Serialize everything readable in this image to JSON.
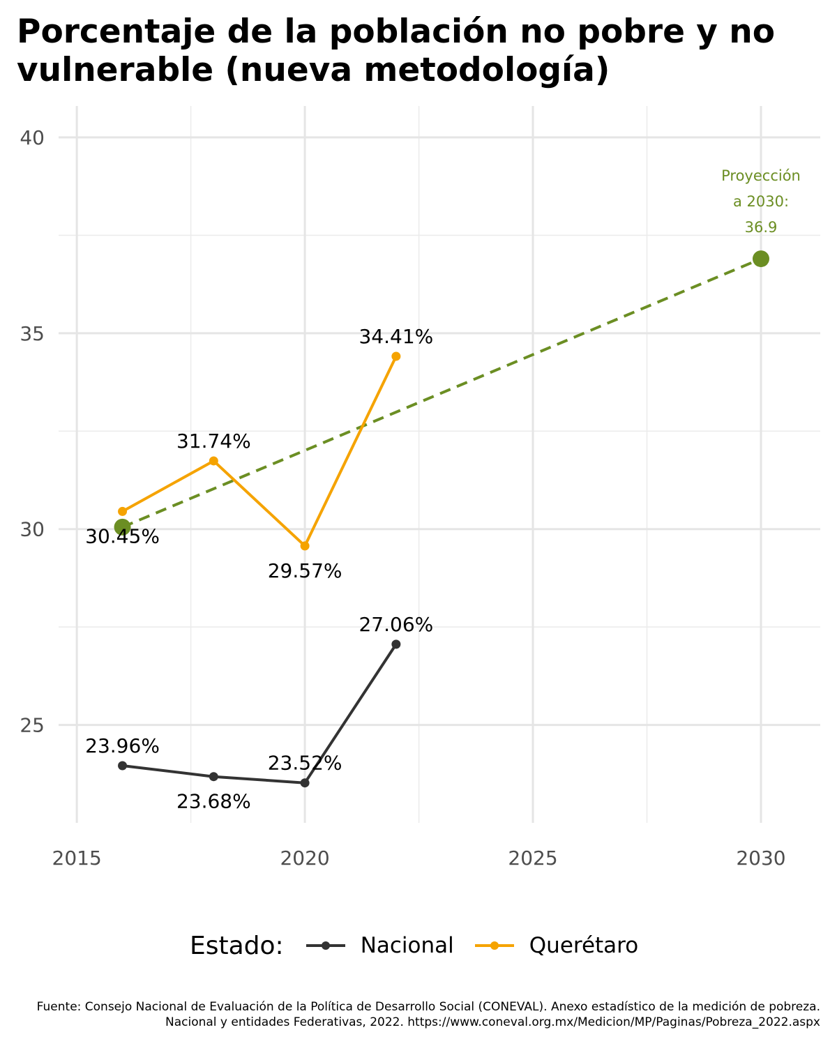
{
  "title": "Porcentaje de la población no pobre y no vulnerable (nueva metodología)",
  "caption": "Fuente: Consejo Nacional de Evaluación de la Política de Desarrollo Social (CONEVAL). Anexo estadístico de la medición de pobreza. Nacional y entidades Federativas, 2022. https://www.coneval.org.mx/Medicion/MP/Paginas/Pobreza_2022.aspx",
  "legend": {
    "title": "Estado:",
    "items": [
      {
        "label": "Nacional",
        "color": "#333333"
      },
      {
        "label": "Querétaro",
        "color": "#F5A300"
      }
    ]
  },
  "projection": {
    "label_lines": [
      "Proyección",
      "a 2030:",
      "36.9"
    ],
    "color": "#6B8E23"
  },
  "chart_data": {
    "type": "line",
    "title": "Porcentaje de la población no pobre y no vulnerable (nueva metodología)",
    "xlabel": "",
    "ylabel": "",
    "xlim": [
      2014.6,
      2031.3
    ],
    "ylim": [
      22.5,
      40.8
    ],
    "x_ticks": [
      2015,
      2020,
      2025,
      2030
    ],
    "x_tick_labels": [
      "2015",
      "2020",
      "2025",
      "2030"
    ],
    "y_ticks": [
      25,
      30,
      35,
      40
    ],
    "y_tick_labels": [
      "25",
      "30",
      "35",
      "40"
    ],
    "grid": true,
    "legend_position": "bottom",
    "series": [
      {
        "name": "Nacional",
        "color": "#333333",
        "x": [
          2016,
          2018,
          2020,
          2022
        ],
        "y": [
          23.96,
          23.68,
          23.52,
          27.06
        ],
        "labels": [
          "23.96%",
          "23.68%",
          "23.52%",
          "27.06%"
        ],
        "label_side": [
          "above",
          "below",
          "above",
          "above"
        ]
      },
      {
        "name": "Querétaro",
        "color": "#F5A300",
        "x": [
          2016,
          2018,
          2020,
          2022
        ],
        "y": [
          30.45,
          31.74,
          29.57,
          34.41
        ],
        "labels": [
          "30.45%",
          "31.74%",
          "29.57%",
          "34.41%"
        ],
        "label_side": [
          "below",
          "above",
          "below",
          "above"
        ]
      }
    ],
    "projection_line": {
      "color": "#6B8E23",
      "x": [
        2016,
        2030
      ],
      "y": [
        30.05,
        36.9
      ],
      "style": "dashed"
    }
  }
}
